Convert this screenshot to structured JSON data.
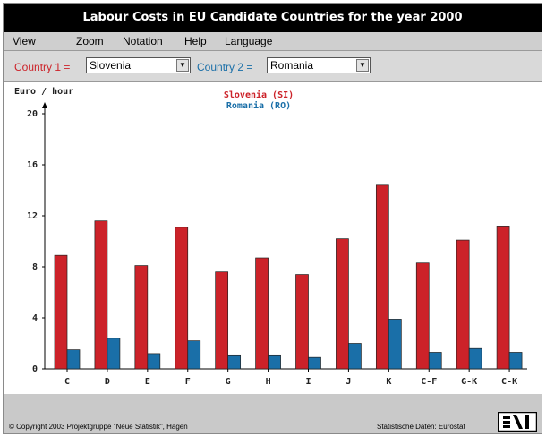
{
  "window": {
    "title": "Labour Costs in EU Candidate Countries for the year 2000"
  },
  "menu": {
    "items": [
      "View",
      "Zoom",
      "Notation",
      "Help",
      "Language"
    ]
  },
  "selectors": {
    "country1_label": "Country 1 =",
    "country1_value": "Slovenia",
    "country2_label": "Country 2 =",
    "country2_value": "Romania",
    "label_color": "#cc2229",
    "label2_color": "#1a6fa8"
  },
  "chart_data": {
    "type": "bar",
    "ylabel": "Euro / hour",
    "ylim": [
      0,
      20
    ],
    "yticks": [
      0,
      4,
      8,
      12,
      16,
      20
    ],
    "categories": [
      "C",
      "D",
      "E",
      "F",
      "G",
      "H",
      "I",
      "J",
      "K",
      "C-F",
      "G-K",
      "C-K"
    ],
    "series": [
      {
        "name": "Slovenia (SI)",
        "color": "#cc2229",
        "values": [
          8.9,
          11.6,
          8.1,
          11.1,
          7.6,
          8.7,
          7.4,
          10.2,
          14.4,
          8.3,
          10.1,
          11.2
        ]
      },
      {
        "name": "Romania (RO)",
        "color": "#1a6fa8",
        "values": [
          1.5,
          2.4,
          1.2,
          2.2,
          1.1,
          1.1,
          0.9,
          2.0,
          3.9,
          1.3,
          1.6,
          1.3
        ]
      }
    ],
    "grid": false,
    "legend": "top-center"
  },
  "footer": {
    "copyright": "© Copyright 2003 Projektgruppe \"Neue Statistik\", Hagen",
    "source": "Statistische Daten: Eurostat"
  }
}
